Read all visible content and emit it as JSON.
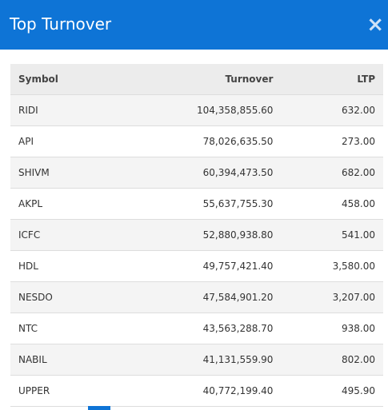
{
  "header": {
    "title": "Top Turnover",
    "close": "×"
  },
  "table": {
    "columns": [
      "Symbol",
      "Turnover",
      "LTP"
    ],
    "rows": [
      [
        "RIDI",
        "104,358,855.60",
        "632.00"
      ],
      [
        "API",
        "78,026,635.50",
        "273.00"
      ],
      [
        "SHIVM",
        "60,394,473.50",
        "682.00"
      ],
      [
        "AKPL",
        "55,637,755.30",
        "458.00"
      ],
      [
        "ICFC",
        "52,880,938.80",
        "541.00"
      ],
      [
        "HDL",
        "49,757,421.40",
        "3,580.00"
      ],
      [
        "NESDO",
        "47,584,901.20",
        "3,207.00"
      ],
      [
        "NTC",
        "43,563,288.70",
        "938.00"
      ],
      [
        "NABIL",
        "41,131,559.90",
        "802.00"
      ],
      [
        "UPPER",
        "40,772,199.40",
        "495.90"
      ]
    ]
  }
}
